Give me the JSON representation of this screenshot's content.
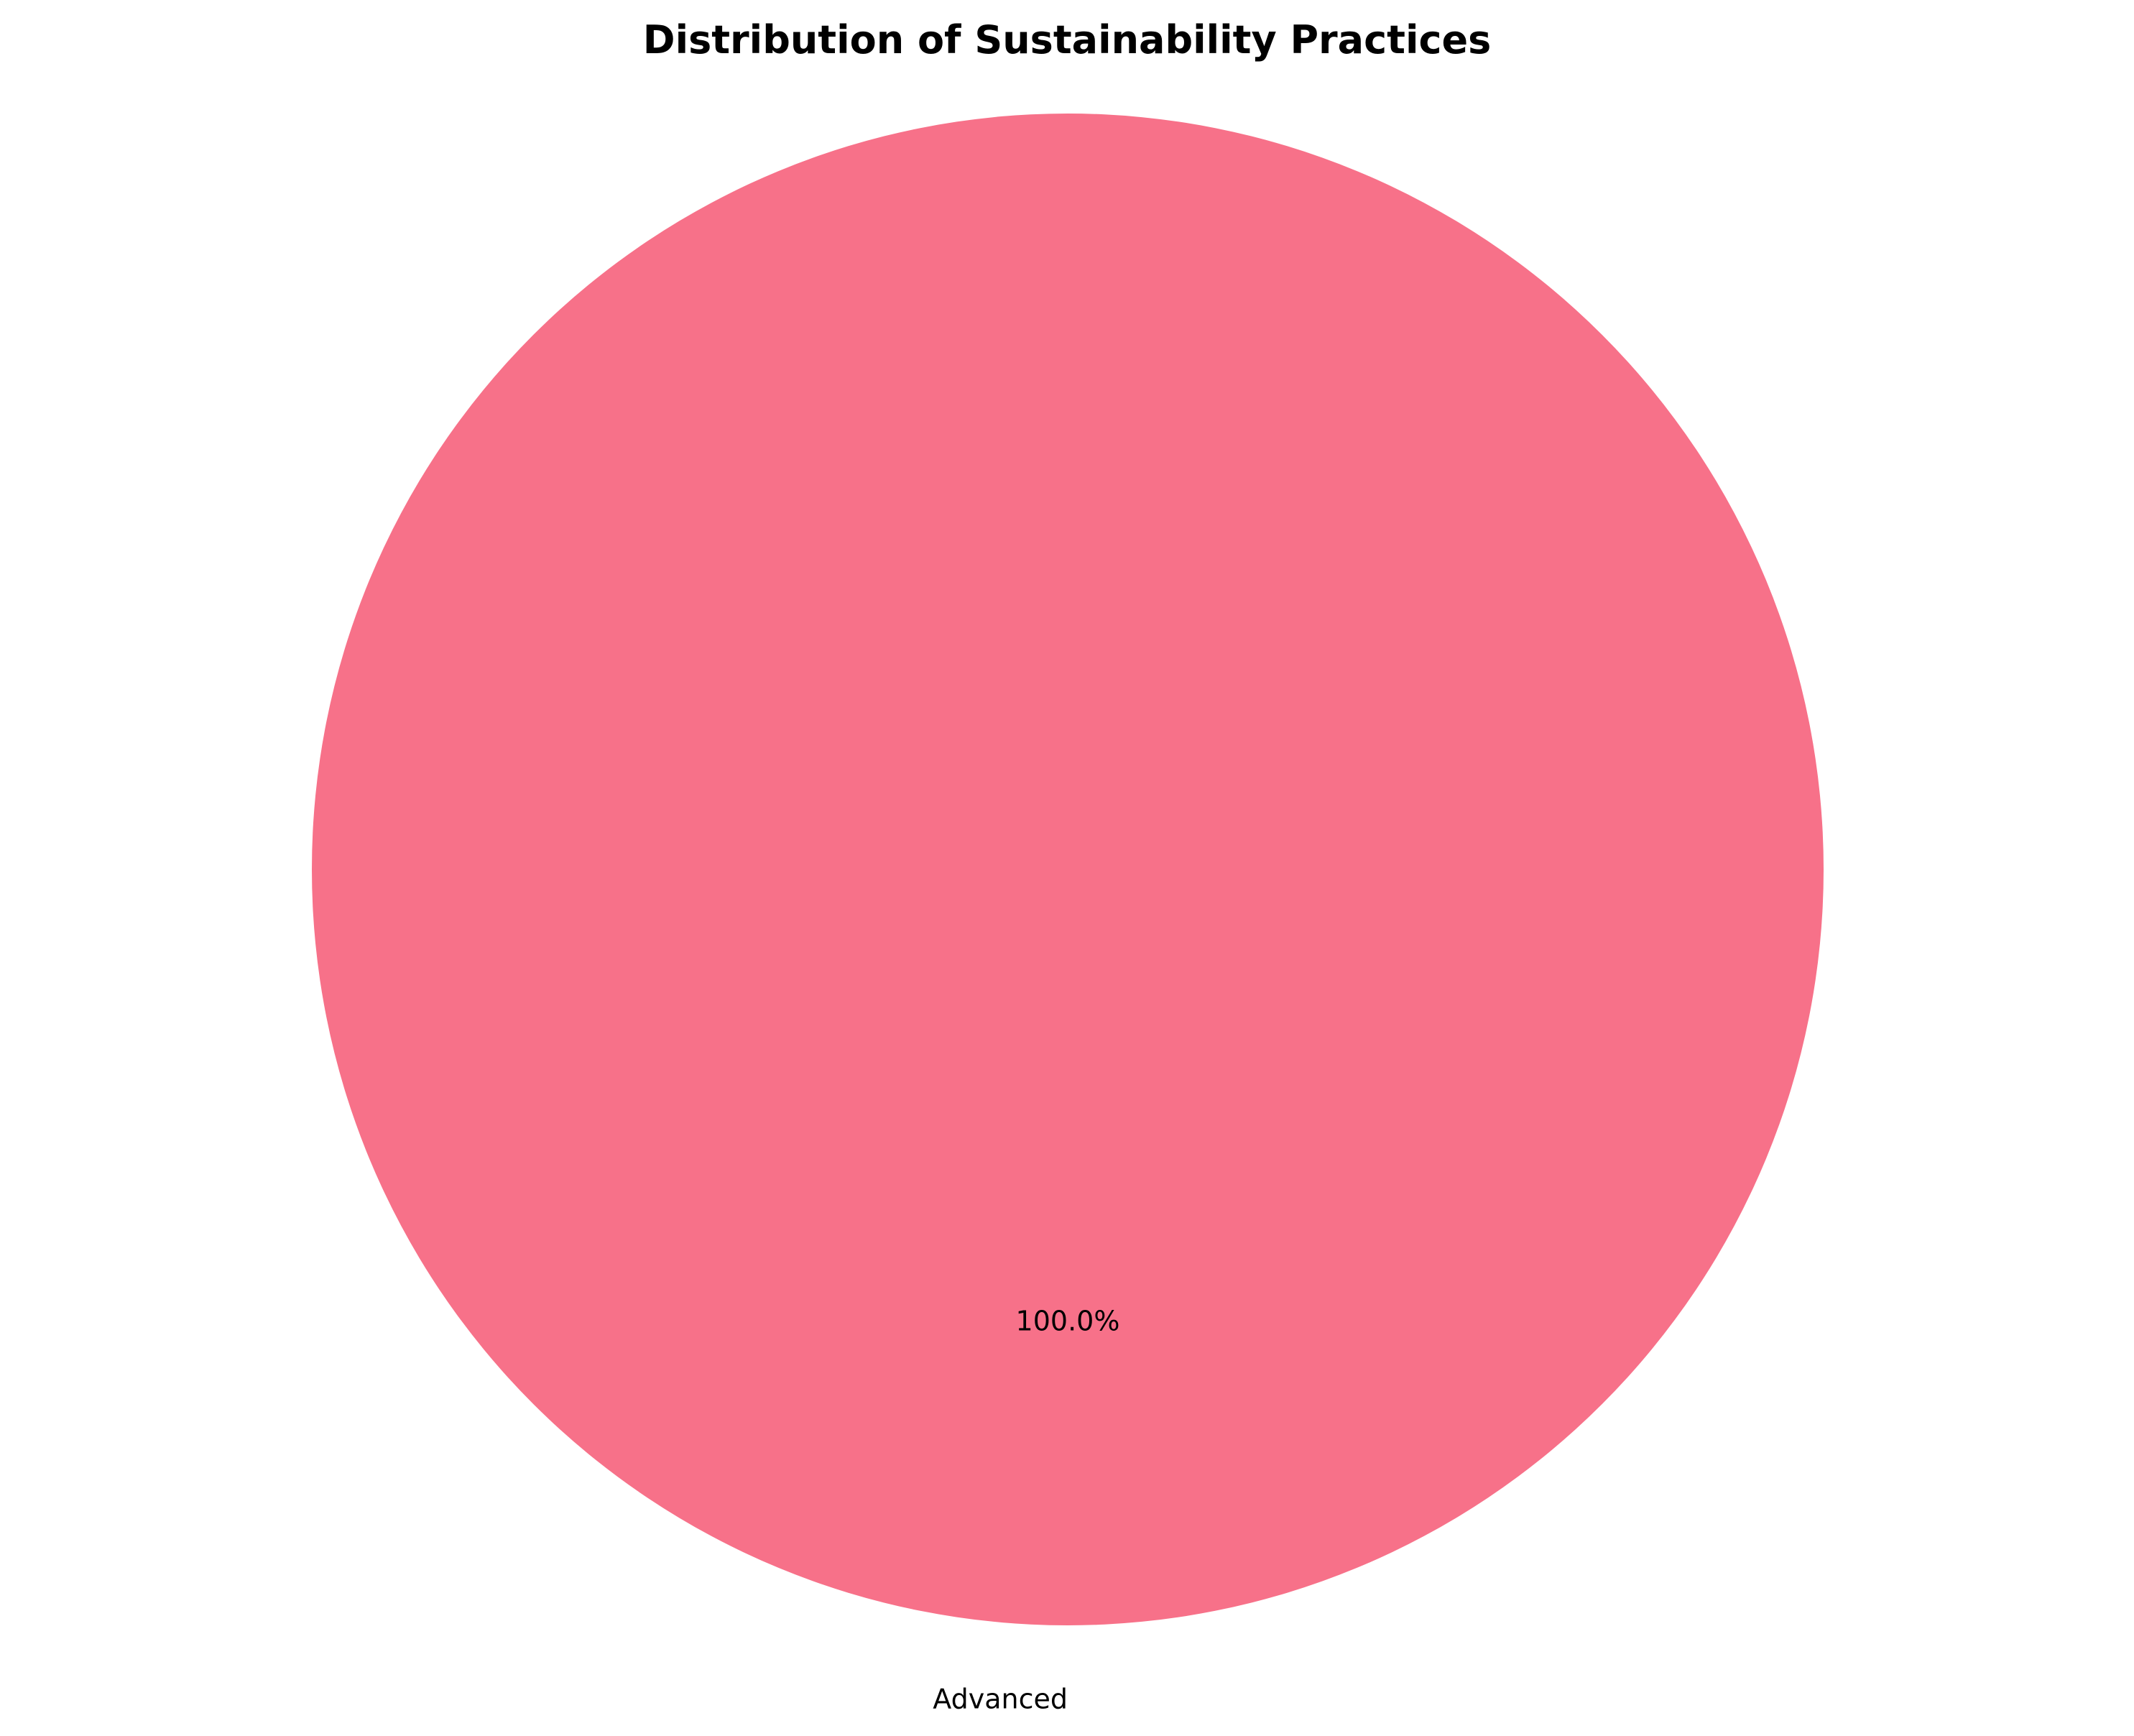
{
  "chart_data": {
    "type": "pie",
    "title": "Distribution of Sustainability Practices",
    "categories": [
      "Advanced"
    ],
    "values": [
      100.0
    ],
    "percent_labels": [
      "100.0%"
    ],
    "colors": [
      "#f77189"
    ],
    "startangle": 90,
    "legend": "none"
  }
}
